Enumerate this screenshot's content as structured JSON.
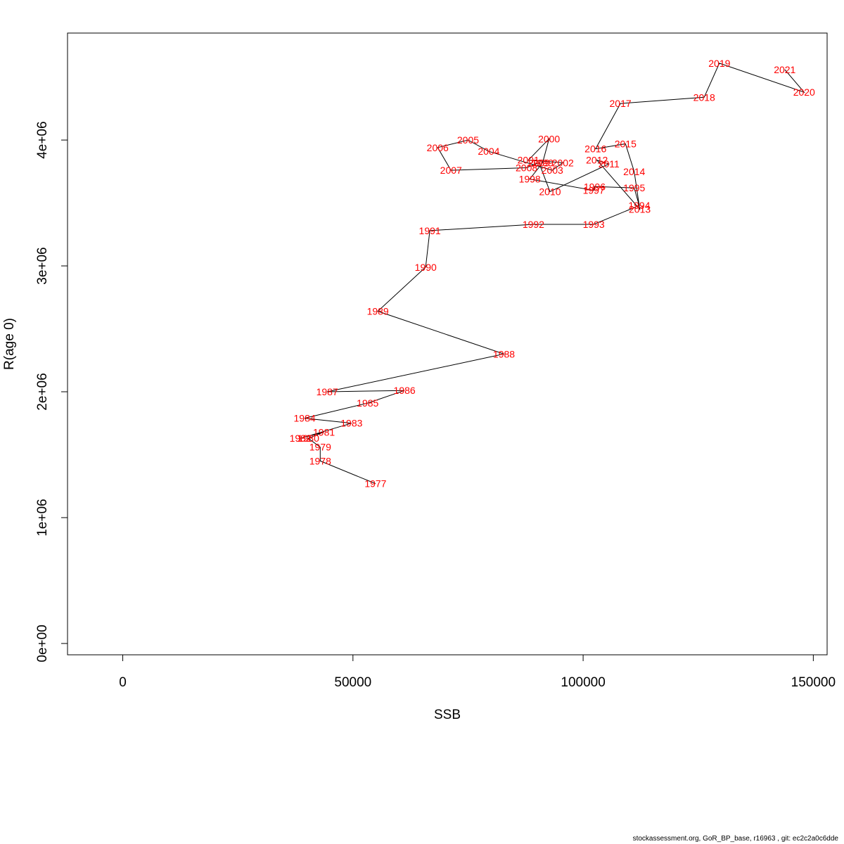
{
  "chart_data": {
    "type": "line",
    "xlabel": "SSB",
    "ylabel": "R(age 0)",
    "xlim": [
      -12000,
      153000
    ],
    "ylim": [
      -90000,
      4850000
    ],
    "x_ticks": [
      0,
      50000,
      100000,
      150000
    ],
    "x_tick_labels": [
      "0",
      "50000",
      "100000",
      "150000"
    ],
    "y_ticks": [
      0,
      1000000,
      2000000,
      3000000,
      4000000
    ],
    "y_tick_labels": [
      "0e+00",
      "1e+06",
      "2e+06",
      "3e+06",
      "4e+06"
    ],
    "grid": false,
    "line_color": "#000000",
    "label_color": "#ff0000",
    "points": [
      {
        "label": "1977",
        "x": 54900,
        "y": 1270000
      },
      {
        "label": "1978",
        "x": 42900,
        "y": 1450000
      },
      {
        "label": "1979",
        "x": 42900,
        "y": 1560000
      },
      {
        "label": "1980",
        "x": 40300,
        "y": 1630000
      },
      {
        "label": "1981",
        "x": 43700,
        "y": 1680000
      },
      {
        "label": "1982",
        "x": 38600,
        "y": 1630000
      },
      {
        "label": "1983",
        "x": 49700,
        "y": 1750000
      },
      {
        "label": "1984",
        "x": 39500,
        "y": 1790000
      },
      {
        "label": "1985",
        "x": 53200,
        "y": 1910000
      },
      {
        "label": "1986",
        "x": 61200,
        "y": 2010000
      },
      {
        "label": "1987",
        "x": 44400,
        "y": 2000000
      },
      {
        "label": "1988",
        "x": 82800,
        "y": 2300000
      },
      {
        "label": "1989",
        "x": 55400,
        "y": 2640000
      },
      {
        "label": "1990",
        "x": 65800,
        "y": 2990000
      },
      {
        "label": "1991",
        "x": 66700,
        "y": 3280000
      },
      {
        "label": "1992",
        "x": 89200,
        "y": 3330000
      },
      {
        "label": "1993",
        "x": 102300,
        "y": 3330000
      },
      {
        "label": "1994",
        "x": 112200,
        "y": 3480000
      },
      {
        "label": "1995",
        "x": 111100,
        "y": 3620000
      },
      {
        "label": "1996",
        "x": 102500,
        "y": 3630000
      },
      {
        "label": "1997",
        "x": 102300,
        "y": 3600000
      },
      {
        "label": "1998",
        "x": 88400,
        "y": 3690000
      },
      {
        "label": "1999",
        "x": 91200,
        "y": 3820000
      },
      {
        "label": "2000",
        "x": 92600,
        "y": 4010000
      },
      {
        "label": "2001",
        "x": 88100,
        "y": 3840000
      },
      {
        "label": "2002",
        "x": 95600,
        "y": 3820000
      },
      {
        "label": "2003",
        "x": 93300,
        "y": 3760000
      },
      {
        "label": "2004",
        "x": 79500,
        "y": 3910000
      },
      {
        "label": "2005",
        "x": 75000,
        "y": 4000000
      },
      {
        "label": "2006",
        "x": 68400,
        "y": 3940000
      },
      {
        "label": "2007",
        "x": 71300,
        "y": 3760000
      },
      {
        "label": "2008",
        "x": 87700,
        "y": 3780000
      },
      {
        "label": "2009",
        "x": 90400,
        "y": 3820000
      },
      {
        "label": "2010",
        "x": 92800,
        "y": 3590000
      },
      {
        "label": "2011",
        "x": 105600,
        "y": 3810000
      },
      {
        "label": "2012",
        "x": 103000,
        "y": 3840000
      },
      {
        "label": "2013",
        "x": 112300,
        "y": 3450000
      },
      {
        "label": "2014",
        "x": 111100,
        "y": 3750000
      },
      {
        "label": "2015",
        "x": 109200,
        "y": 3970000
      },
      {
        "label": "2016",
        "x": 102700,
        "y": 3930000
      },
      {
        "label": "2017",
        "x": 108100,
        "y": 4290000
      },
      {
        "label": "2018",
        "x": 126300,
        "y": 4340000
      },
      {
        "label": "2019",
        "x": 129600,
        "y": 4610000
      },
      {
        "label": "2020",
        "x": 148000,
        "y": 4380000
      },
      {
        "label": "2021",
        "x": 143800,
        "y": 4560000
      }
    ]
  },
  "footer": "stockassessment.org, GoR_BP_base, r16963 , git: ec2c2a0c6dde"
}
